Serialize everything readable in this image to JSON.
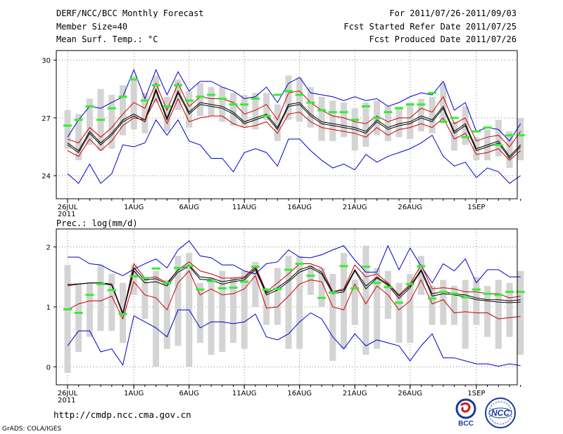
{
  "header": {
    "title": "DERF/NCC/BCC Monthly Forecast",
    "member_size": "Member Size=40",
    "variable": "Mean Surf. Temp.: °C",
    "forecast_period": "For 2011/07/26-2011/09/03",
    "fcst_started": "Fcst Started Refer Date 2011/07/25",
    "fcst_produced": "Fcst Produced Date 2011/07/26"
  },
  "precip_label": "Prec.: log(mm/d)",
  "footer": {
    "url": "http://cmdp.ncc.cma.gov.cn",
    "grads": "GrADS: COLA/IGES",
    "logo_bcc": "BCC",
    "logo_ncc": "NCC"
  },
  "colors": {
    "blue": "#0000cc",
    "red": "#cc0000",
    "black": "#000000",
    "green": "#33ee33",
    "box": "#d4d4d4"
  },
  "chart_data": [
    {
      "type": "line",
      "title": "Mean Surf. Temp.: °C",
      "ylim": [
        22.8,
        30.5
      ],
      "yticks": [
        24,
        27,
        30
      ],
      "x_tick_labels": [
        {
          "day": 0,
          "label": "26JUL",
          "sub": "2011"
        },
        {
          "day": 6,
          "label": "1AUG"
        },
        {
          "day": 11,
          "label": "6AUG"
        },
        {
          "day": 16,
          "label": "11AUG"
        },
        {
          "day": 21,
          "label": "16AUG"
        },
        {
          "day": 26,
          "label": "21AUG"
        },
        {
          "day": 31,
          "label": "26AUG"
        },
        {
          "day": 37,
          "label": "1SEP"
        }
      ],
      "series": [
        {
          "name": "max",
          "color": "blue",
          "values": [
            26.0,
            26.9,
            27.6,
            27.5,
            27.8,
            28.1,
            29.5,
            28.0,
            29.5,
            28.2,
            29.4,
            28.4,
            28.9,
            28.9,
            28.6,
            28.4,
            28.0,
            28.1,
            28.6,
            27.8,
            28.8,
            29.1,
            28.3,
            28.2,
            28.1,
            27.9,
            28.1,
            27.9,
            28.0,
            27.6,
            27.8,
            28.1,
            28.3,
            28.2,
            28.9,
            27.4,
            27.8,
            26.3,
            26.5,
            26.4,
            25.8,
            26.7
          ]
        },
        {
          "name": "p75",
          "color": "red",
          "values": [
            25.9,
            25.7,
            26.5,
            26.0,
            26.5,
            27.2,
            27.8,
            27.5,
            28.8,
            27.4,
            28.8,
            27.6,
            28.1,
            28.0,
            28.0,
            27.8,
            27.2,
            27.4,
            27.7,
            26.9,
            28.3,
            28.4,
            27.8,
            27.4,
            27.1,
            27.0,
            26.8,
            26.7,
            27.1,
            26.8,
            27.0,
            27.0,
            27.5,
            27.3,
            28.1,
            26.7,
            27.0,
            25.8,
            26.0,
            26.1,
            25.5,
            26.3
          ]
        },
        {
          "name": "mean",
          "color": "black",
          "values": [
            25.7,
            25.3,
            26.3,
            25.7,
            26.2,
            26.9,
            27.2,
            26.9,
            28.5,
            27.0,
            28.4,
            27.3,
            27.8,
            27.7,
            27.6,
            27.3,
            26.8,
            27.0,
            27.2,
            26.5,
            27.7,
            27.8,
            27.2,
            26.8,
            26.7,
            26.6,
            26.5,
            26.3,
            26.9,
            26.5,
            26.7,
            26.8,
            27.1,
            26.9,
            27.6,
            26.3,
            26.7,
            25.4,
            25.6,
            25.8,
            25.0,
            25.6
          ]
        },
        {
          "name": "median",
          "color": "black",
          "values": [
            25.6,
            25.2,
            26.2,
            25.6,
            26.1,
            26.8,
            27.1,
            26.8,
            28.4,
            26.9,
            28.3,
            27.2,
            27.7,
            27.6,
            27.5,
            27.2,
            26.7,
            26.9,
            27.1,
            26.4,
            27.6,
            27.7,
            27.1,
            26.7,
            26.6,
            26.5,
            26.4,
            26.2,
            26.8,
            26.4,
            26.6,
            26.7,
            27.0,
            26.8,
            27.5,
            26.2,
            26.6,
            25.3,
            25.5,
            25.7,
            24.9,
            25.5
          ]
        },
        {
          "name": "p25",
          "color": "red",
          "values": [
            25.3,
            25.0,
            25.9,
            25.3,
            25.8,
            26.6,
            27.0,
            26.9,
            28.0,
            26.7,
            28.0,
            26.8,
            27.0,
            27.1,
            27.1,
            26.7,
            26.5,
            26.6,
            26.8,
            26.2,
            27.2,
            27.3,
            26.8,
            26.5,
            26.4,
            26.3,
            26.2,
            26.0,
            26.5,
            26.1,
            26.4,
            26.5,
            26.7,
            26.5,
            27.0,
            25.9,
            26.2,
            25.1,
            25.2,
            25.4,
            24.8,
            25.3
          ]
        },
        {
          "name": "min",
          "color": "blue",
          "values": [
            24.1,
            23.6,
            24.6,
            23.6,
            24.1,
            25.6,
            25.5,
            25.7,
            26.9,
            26.1,
            26.9,
            25.8,
            25.6,
            24.9,
            24.9,
            24.2,
            25.2,
            25.4,
            25.2,
            24.5,
            25.9,
            25.9,
            25.3,
            24.8,
            24.4,
            24.6,
            24.3,
            25.1,
            24.7,
            25.0,
            25.2,
            25.4,
            25.7,
            26.1,
            25.0,
            24.5,
            24.7,
            23.9,
            24.4,
            24.2,
            23.6,
            24.0
          ]
        },
        {
          "name": "green",
          "color": "green",
          "values": [
            26.6,
            26.9,
            27.6,
            26.9,
            27.5,
            28.1,
            29.0,
            27.9,
            28.7,
            27.6,
            28.7,
            27.9,
            28.1,
            28.2,
            28.0,
            27.7,
            27.7,
            28.0,
            27.1,
            28.2,
            28.4,
            28.2,
            27.8,
            27.4,
            27.3,
            27.3,
            26.9,
            27.6,
            27.0,
            27.3,
            27.5,
            27.7,
            27.7,
            28.3,
            26.8,
            27.0,
            26.0,
            26.3,
            26.5,
            25.6,
            26.1,
            26.1
          ]
        }
      ],
      "boxes_low": [
        25.4,
        24.8,
        25.6,
        25.3,
        25.4,
        26.1,
        26.4,
        26.2,
        27.8,
        26.3,
        27.4,
        26.5,
        27.1,
        27.1,
        26.8,
        26.6,
        26.5,
        26.4,
        26.9,
        25.8,
        26.9,
        26.8,
        26.5,
        25.8,
        25.8,
        26.0,
        25.3,
        25.5,
        26.1,
        25.8,
        26.0,
        25.9,
        26.3,
        26.2,
        26.8,
        25.3,
        25.6,
        24.8,
        24.8,
        25.0,
        24.4,
        24.8
      ],
      "boxes_high": [
        27.4,
        27.2,
        28.0,
        28.5,
        28.2,
        28.7,
        29.2,
        28.3,
        29.2,
        28.1,
        29.0,
        28.4,
        28.8,
        28.6,
        28.6,
        28.3,
        28.2,
        28.3,
        28.3,
        27.7,
        29.2,
        29.1,
        28.6,
        28.1,
        27.9,
        27.8,
        27.5,
        27.8,
        27.9,
        27.6,
        27.6,
        27.8,
        28.0,
        28.1,
        28.8,
        26.8,
        27.6,
        26.0,
        26.4,
        26.9,
        26.3,
        27.0
      ]
    },
    {
      "type": "line",
      "title": "Prec.: log(mm/d)",
      "ylim": [
        -0.3,
        2.3
      ],
      "yticks": [
        0,
        1,
        2
      ],
      "x_tick_labels": [
        {
          "day": 0,
          "label": "26JUL",
          "sub": "2011"
        },
        {
          "day": 6,
          "label": "1AUG"
        },
        {
          "day": 11,
          "label": "6AUG"
        },
        {
          "day": 16,
          "label": "11AUG"
        },
        {
          "day": 21,
          "label": "16AUG"
        },
        {
          "day": 26,
          "label": "21AUG"
        },
        {
          "day": 31,
          "label": "26AUG"
        },
        {
          "day": 37,
          "label": "1SEP"
        }
      ],
      "series": [
        {
          "name": "max",
          "color": "blue",
          "values": [
            1.83,
            1.83,
            1.72,
            1.7,
            1.6,
            1.52,
            1.63,
            1.72,
            1.8,
            1.65,
            1.95,
            2.1,
            1.85,
            1.82,
            1.7,
            1.7,
            1.6,
            1.55,
            1.72,
            1.75,
            1.95,
            1.83,
            1.82,
            1.87,
            1.95,
            2.02,
            1.78,
            1.58,
            1.58,
            2.02,
            1.62,
            1.98,
            1.68,
            1.4,
            1.72,
            1.6,
            1.8,
            1.4,
            1.62,
            1.62,
            1.5,
            1.5
          ]
        },
        {
          "name": "p75",
          "color": "red",
          "values": [
            1.35,
            1.38,
            1.4,
            1.4,
            1.38,
            0.87,
            1.72,
            1.48,
            1.5,
            1.4,
            1.62,
            1.75,
            1.6,
            1.55,
            1.48,
            1.48,
            1.5,
            1.68,
            1.25,
            1.4,
            1.55,
            1.72,
            1.72,
            1.65,
            1.25,
            1.3,
            1.7,
            1.5,
            1.55,
            1.4,
            1.2,
            1.38,
            1.7,
            1.3,
            1.32,
            1.3,
            1.25,
            1.25,
            1.22,
            1.22,
            1.15,
            1.18
          ]
        },
        {
          "name": "mean",
          "color": "black",
          "values": [
            1.37,
            1.38,
            1.4,
            1.4,
            1.38,
            0.9,
            1.65,
            1.45,
            1.47,
            1.38,
            1.62,
            1.7,
            1.5,
            1.48,
            1.42,
            1.45,
            1.48,
            1.65,
            1.23,
            1.32,
            1.45,
            1.62,
            1.68,
            1.58,
            1.25,
            1.28,
            1.62,
            1.35,
            1.5,
            1.38,
            1.18,
            1.35,
            1.62,
            1.22,
            1.25,
            1.22,
            1.2,
            1.15,
            1.12,
            1.12,
            1.1,
            1.12
          ]
        },
        {
          "name": "median",
          "color": "black",
          "values": [
            1.37,
            1.38,
            1.4,
            1.4,
            1.36,
            0.88,
            1.6,
            1.4,
            1.42,
            1.35,
            1.58,
            1.68,
            1.46,
            1.45,
            1.38,
            1.42,
            1.45,
            1.62,
            1.2,
            1.28,
            1.42,
            1.58,
            1.65,
            1.55,
            1.22,
            1.25,
            1.6,
            1.3,
            1.48,
            1.36,
            1.14,
            1.32,
            1.6,
            1.18,
            1.22,
            1.2,
            1.17,
            1.12,
            1.1,
            1.08,
            1.07,
            1.08
          ]
        },
        {
          "name": "p25",
          "color": "red",
          "values": [
            0.95,
            1.05,
            1.1,
            1.1,
            1.18,
            0.8,
            1.42,
            1.2,
            1.15,
            0.95,
            1.4,
            1.6,
            1.2,
            1.3,
            1.2,
            1.22,
            1.3,
            1.52,
            0.98,
            1.0,
            1.18,
            1.38,
            1.45,
            1.42,
            1.0,
            0.95,
            1.38,
            1.05,
            1.35,
            1.2,
            0.95,
            1.1,
            1.45,
            1.05,
            1.12,
            0.9,
            0.92,
            0.9,
            0.9,
            0.8,
            0.82,
            0.84
          ]
        },
        {
          "name": "min",
          "color": "blue",
          "values": [
            0.35,
            0.6,
            0.6,
            0.25,
            0.3,
            0.03,
            0.85,
            0.75,
            0.65,
            0.5,
            0.95,
            0.95,
            0.65,
            0.75,
            0.75,
            0.72,
            0.75,
            0.88,
            0.5,
            0.45,
            0.55,
            0.75,
            0.9,
            0.8,
            0.5,
            0.3,
            0.55,
            0.35,
            0.45,
            0.4,
            0.35,
            0.1,
            0.35,
            0.55,
            0.15,
            0.15,
            0.1,
            0.05,
            0.05,
            0.01,
            0.05,
            0.02
          ]
        },
        {
          "name": "green",
          "color": "green",
          "values": [
            0.96,
            0.9,
            1.2,
            1.38,
            1.28,
            0.88,
            1.51,
            1.48,
            1.64,
            1.4,
            1.65,
            1.68,
            1.29,
            1.43,
            1.31,
            1.32,
            1.42,
            1.67,
            1.29,
            1.3,
            1.62,
            1.72,
            1.52,
            1.15,
            1.24,
            1.68,
            1.31,
            1.67,
            1.4,
            1.33,
            1.07,
            1.38,
            1.68,
            1.14,
            1.25,
            1.22,
            1.16,
            1.29,
            1.22,
            1.2,
            1.25,
            1.25
          ]
        }
      ],
      "boxes_low": [
        -0.1,
        0.25,
        0.5,
        0.6,
        0.6,
        0.4,
        1.2,
        0.8,
        0.0,
        0.3,
        0.35,
        0.0,
        0.4,
        0.2,
        0.25,
        0.4,
        0.3,
        1.0,
        0.7,
        0.7,
        0.3,
        0.3,
        1.2,
        1.0,
        0.1,
        0.3,
        0.7,
        0.2,
        0.3,
        0.8,
        0.4,
        0.4,
        1.2,
        0.7,
        0.7,
        0.7,
        0.3,
        0.7,
        0.5,
        0.3,
        0.5,
        0.2
      ],
      "boxes_high": [
        1.7,
        1.4,
        1.4,
        1.7,
        1.55,
        1.4,
        1.7,
        1.5,
        1.6,
        1.45,
        1.85,
        1.9,
        1.4,
        1.5,
        1.6,
        1.5,
        1.6,
        1.75,
        1.3,
        1.65,
        1.85,
        1.85,
        1.7,
        1.65,
        1.55,
        1.9,
        1.45,
        2.02,
        1.65,
        1.6,
        1.4,
        1.55,
        1.85,
        1.35,
        1.45,
        1.35,
        1.45,
        1.5,
        1.35,
        1.45,
        1.4,
        1.6
      ]
    }
  ]
}
